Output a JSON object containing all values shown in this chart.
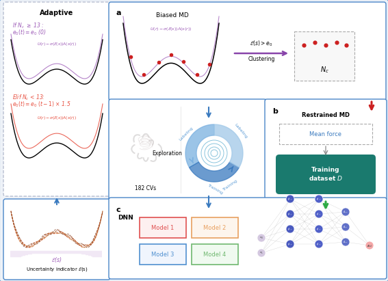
{
  "bg_color": "#eef2f8",
  "panel_border_blue": "#4a86c8",
  "dashed_color": "#aaaaaa",
  "adaptive_title": "Adaptive",
  "if_line1": "If $N_c$ $\\geq$ 13 :",
  "if_line2": "$e_0(t) = e_0$ (0)",
  "elif_line1": "Elif $N_c$ < 13:",
  "elif_line2": "$e_0(t) = e_0$ $(t-1)$ $\\times$ 1.5",
  "purple_formula": "$U(r)-\\sigma(\\mathcal{E}(s))A(s(r))$",
  "red_formula": "$U(r)-\\sigma(\\mathcal{E}(s))A(s(r))$",
  "biased_md_title": "Biased MD",
  "biased_formula": "$U(r)-\\sigma(\\mathcal{E}(s))A(s(r))$",
  "epsilon_gt": "$\\mathcal{E}(s) > e_0$",
  "clustering": "Clustering",
  "nc_label": "$N_c$",
  "cvs_label": "182 CVs",
  "exploration_label": "Exploration",
  "labeling_label": "Labeling",
  "training_label": "Training",
  "panel_b_label": "b",
  "panel_a_label": "a",
  "panel_c_label": "c",
  "restrained_md": "Restrained MD",
  "mean_force": "Mean force",
  "training_dataset": "Training\ndataset $D$",
  "dnn_label": "DNN",
  "model1": "Model 1",
  "model2": "Model 2",
  "model3": "Model 3",
  "model4": "Model 4",
  "uncertainty_label": "Uncertainty indicator $\\mathcal{E}$(s)",
  "epsilon_label": "$\\mathcal{E}$(s)",
  "purple_color": "#9b59b6",
  "red_color": "#e74c3c",
  "blue_color": "#3a7abf",
  "teal_color": "#1a7a6e",
  "cycle_blue": "#5b9bd5",
  "model1_border": "#e05050",
  "model2_border": "#e8a060",
  "model3_border": "#5090d0",
  "model4_border": "#70b870",
  "model1_fill": "#fdf0f0",
  "model2_fill": "#fdf5ed",
  "model3_fill": "#f0f5fd",
  "model4_fill": "#f0faf0",
  "nn_input_color": "#d4c8e8",
  "nn_hidden_color": "#4a6abf",
  "nn_output_color": "#f4a8a8",
  "node_r": 6
}
